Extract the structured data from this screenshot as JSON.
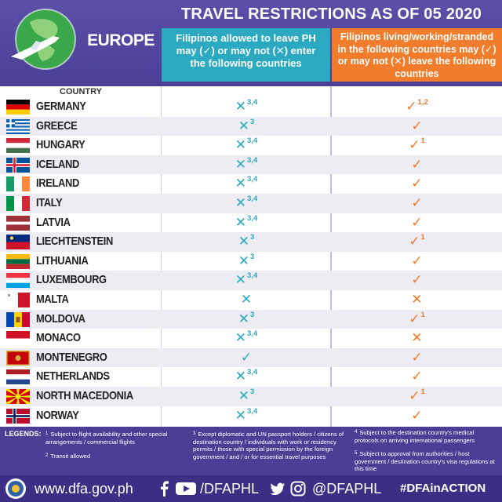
{
  "header": {
    "region": "EUROPE",
    "title": "TRAVEL RESTRICTIONS AS OF 05 2020",
    "col1_heading": "Filipinos allowed to leave PH may (✓) or may not (✕) enter the following countries",
    "col2_heading": "Filipinos living/working/stranded in the following countries may (✓) or may not (✕) leave the following countries"
  },
  "country_heading": "COUNTRY",
  "rows": [
    {
      "country": "GERMANY",
      "flag": "germany",
      "enter": "✕",
      "enter_notes": "3,4",
      "leave": "✓",
      "leave_notes": "1,2"
    },
    {
      "country": "GREECE",
      "flag": "greece",
      "enter": "✕",
      "enter_notes": "3",
      "leave": "✓",
      "leave_notes": ""
    },
    {
      "country": "HUNGARY",
      "flag": "hungary",
      "enter": "✕",
      "enter_notes": "3,4",
      "leave": "✓",
      "leave_notes": "1"
    },
    {
      "country": "ICELAND",
      "flag": "iceland",
      "enter": "✕",
      "enter_notes": "3,4",
      "leave": "✓",
      "leave_notes": ""
    },
    {
      "country": "IRELAND",
      "flag": "ireland",
      "enter": "✕",
      "enter_notes": "3,4",
      "leave": "✓",
      "leave_notes": ""
    },
    {
      "country": "ITALY",
      "flag": "italy",
      "enter": "✕",
      "enter_notes": "3,4",
      "leave": "✓",
      "leave_notes": ""
    },
    {
      "country": "LATVIA",
      "flag": "latvia",
      "enter": "✕",
      "enter_notes": "3,4",
      "leave": "✓",
      "leave_notes": ""
    },
    {
      "country": "LIECHTENSTEIN",
      "flag": "liechtenstein",
      "enter": "✕",
      "enter_notes": "3",
      "leave": "✓",
      "leave_notes": "1"
    },
    {
      "country": "LITHUANIA",
      "flag": "lithuania",
      "enter": "✕",
      "enter_notes": "3",
      "leave": "✓",
      "leave_notes": ""
    },
    {
      "country": "LUXEMBOURG",
      "flag": "luxembourg",
      "enter": "✕",
      "enter_notes": "3,4",
      "leave": "✓",
      "leave_notes": ""
    },
    {
      "country": "MALTA",
      "flag": "malta",
      "enter": "✕",
      "enter_notes": "",
      "leave": "✕",
      "leave_notes": ""
    },
    {
      "country": "MOLDOVA",
      "flag": "moldova",
      "enter": "✕",
      "enter_notes": "3",
      "leave": "✓",
      "leave_notes": "1"
    },
    {
      "country": "MONACO",
      "flag": "monaco",
      "enter": "✕",
      "enter_notes": "3,4",
      "leave": "✕",
      "leave_notes": ""
    },
    {
      "country": "MONTENEGRO",
      "flag": "montenegro",
      "enter": "✓",
      "enter_notes": "",
      "leave": "✓",
      "leave_notes": ""
    },
    {
      "country": "NETHERLANDS",
      "flag": "netherlands",
      "enter": "✕",
      "enter_notes": "3,4",
      "leave": "✓",
      "leave_notes": ""
    },
    {
      "country": "NORTH MACEDONIA",
      "flag": "north-macedonia",
      "enter": "✕",
      "enter_notes": "3",
      "leave": "✓",
      "leave_notes": "1"
    },
    {
      "country": "NORWAY",
      "flag": "norway",
      "enter": "✕",
      "enter_notes": "3,4",
      "leave": "✓",
      "leave_notes": ""
    }
  ],
  "legends": {
    "label": "LEGENDS:",
    "n1": "Subject to flight availability and other special arrangements / commercial flights",
    "n2": "Transit allowed",
    "n3": "Except diplomatic and UN passport holders / citizens of destination country / individuals with work or residency permits / those with special permission by the foreign government / and / or for essential travel purposes",
    "n4": "Subject to the destination country's medical protocols on arriving international passengers",
    "n5": "Subject to approval from authorities / host government / destination country's visa regulations at this time"
  },
  "footer": {
    "website": "www.dfa.gov.ph",
    "handle_fb": "/DFAPHL",
    "handle_tw": "@DFAPHL",
    "hashtag": "#DFAinACTION"
  },
  "colors": {
    "purple": "#4a3f95",
    "teal": "#2aa9c0",
    "orange": "#f07c2c"
  }
}
